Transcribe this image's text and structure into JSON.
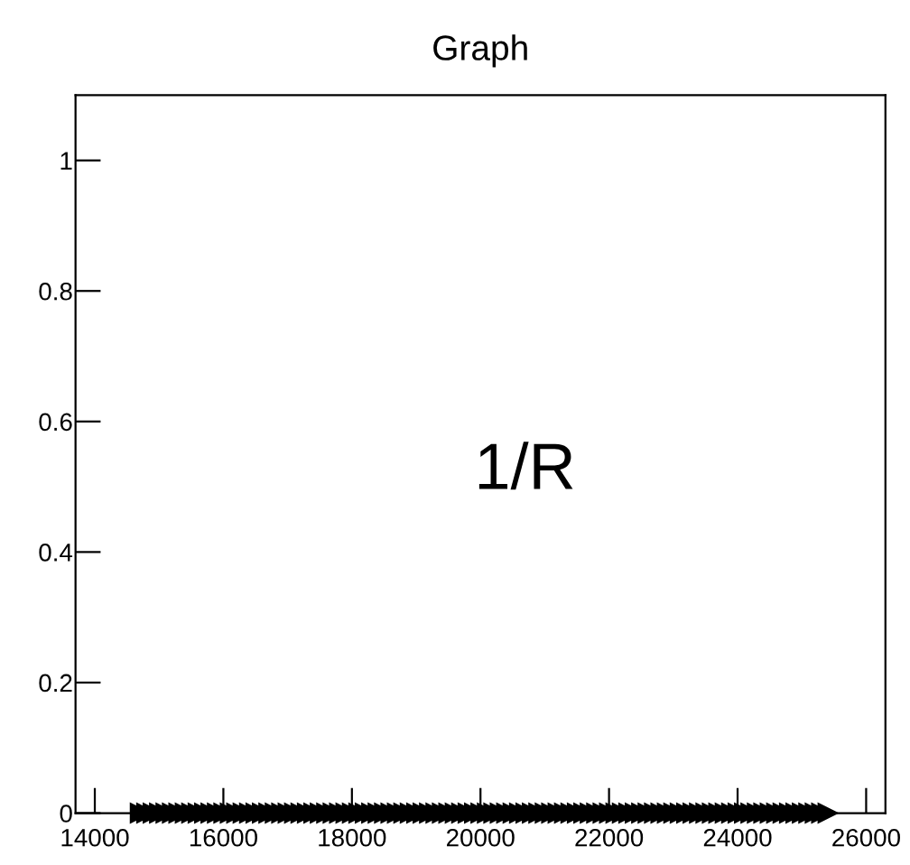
{
  "chart_data": {
    "type": "scatter",
    "title": "Graph",
    "annotations": [
      "1/R"
    ],
    "x": [
      14700,
      14800,
      14900,
      15000,
      15100,
      15200,
      15300,
      15400,
      15500,
      15600,
      15700,
      15800,
      15900,
      16000,
      16100,
      16200,
      16300,
      16400,
      16500,
      16600,
      16700,
      16800,
      16900,
      17000,
      17100,
      17200,
      17300,
      17400,
      17500,
      17600,
      17700,
      17800,
      17900,
      18000,
      18100,
      18200,
      18300,
      18400,
      18500,
      18600,
      18700,
      18800,
      18900,
      19000,
      19100,
      19200,
      19300,
      19400,
      19500,
      19600,
      19700,
      19800,
      19900,
      20000,
      20100,
      20200,
      20300,
      20400,
      20500,
      20600,
      20700,
      20800,
      20900,
      21000,
      21100,
      21200,
      21300,
      21400,
      21500,
      21600,
      21700,
      21800,
      21900,
      22000,
      22100,
      22200,
      22300,
      22400,
      22500,
      22600,
      22700,
      22800,
      22900,
      23000,
      23100,
      23200,
      23300,
      23400,
      23500,
      23600,
      23700,
      23800,
      23900,
      24000,
      24100,
      24200,
      24300,
      24400,
      24500,
      24600,
      24700,
      24800,
      24900,
      25000,
      25100,
      25200,
      25300,
      25400
    ],
    "values": [
      0,
      0,
      0,
      0,
      0,
      0,
      0,
      0,
      0,
      0,
      0,
      0,
      0,
      0,
      0,
      0,
      0,
      0,
      0,
      0,
      0,
      0,
      0,
      0,
      0,
      0,
      0,
      0,
      0,
      0,
      0,
      0,
      0,
      0,
      0,
      0,
      0,
      0,
      0,
      0,
      0,
      0,
      0,
      0,
      0,
      0,
      0,
      0,
      0,
      0,
      0,
      0,
      0,
      0,
      0,
      0,
      0,
      0,
      0,
      0,
      0,
      0,
      0,
      0,
      0,
      0,
      0,
      0,
      0,
      0,
      0,
      0,
      0,
      0,
      0,
      0,
      0,
      0,
      0,
      0,
      0,
      0,
      0,
      0,
      0,
      0,
      0,
      0,
      0,
      0,
      0,
      0,
      0,
      0,
      0,
      0,
      0,
      0,
      0,
      0,
      0,
      0,
      0,
      0,
      0,
      0,
      0,
      0
    ],
    "color": "#000000",
    "marker": "triangle",
    "xlim": [
      13700,
      26300
    ],
    "ylim": [
      0,
      1.1
    ],
    "xticks": [
      14000,
      16000,
      18000,
      20000,
      22000,
      24000,
      26000
    ],
    "yticks": [
      0,
      0.2,
      0.4,
      0.6,
      0.8,
      1
    ],
    "grid": false,
    "legend": false
  }
}
